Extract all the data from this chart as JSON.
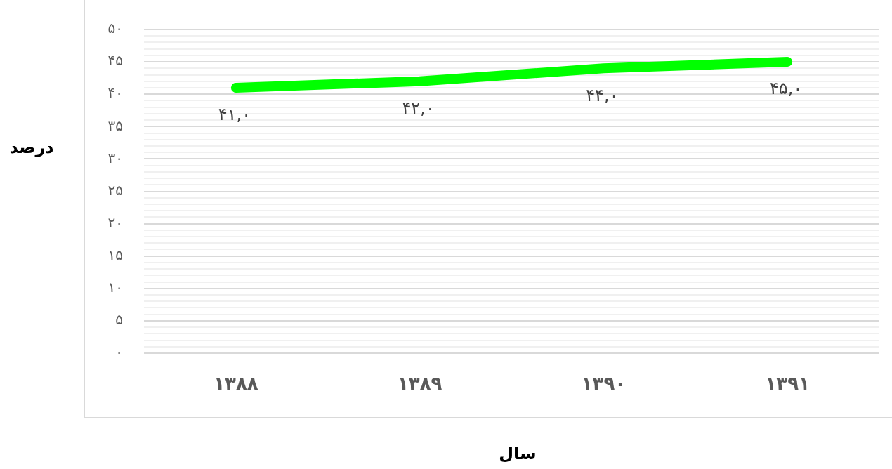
{
  "chart_data": {
    "type": "line",
    "xlabel": "سال",
    "ylabel": "درصد",
    "categories": [
      "۱۳۸۸",
      "۱۳۸۹",
      "۱۳۹۰",
      "۱۳۹۱"
    ],
    "series": [
      {
        "color": "#00ff00",
        "values": [
          41,
          42,
          44,
          45
        ],
        "value_labels": [
          "۴۱,۰",
          "۴۲,۰",
          "۴۴,۰",
          "۴۵,۰"
        ]
      }
    ],
    "ylim": [
      0,
      50
    ],
    "yticks": [
      {
        "value": 0,
        "label": "۰"
      },
      {
        "value": 1,
        "label": null
      },
      {
        "value": 2,
        "label": null
      },
      {
        "value": 3,
        "label": null
      },
      {
        "value": 4,
        "label": null
      },
      {
        "value": 5,
        "label": "۵"
      },
      {
        "value": 6,
        "label": null
      },
      {
        "value": 7,
        "label": null
      },
      {
        "value": 8,
        "label": null
      },
      {
        "value": 9,
        "label": null
      },
      {
        "value": 10,
        "label": "۱۰"
      },
      {
        "value": 11,
        "label": null
      },
      {
        "value": 12,
        "label": null
      },
      {
        "value": 13,
        "label": null
      },
      {
        "value": 14,
        "label": null
      },
      {
        "value": 15,
        "label": "۱۵"
      },
      {
        "value": 16,
        "label": null
      },
      {
        "value": 17,
        "label": null
      },
      {
        "value": 18,
        "label": null
      },
      {
        "value": 19,
        "label": null
      },
      {
        "value": 20,
        "label": "۲۰"
      },
      {
        "value": 21,
        "label": null
      },
      {
        "value": 22,
        "label": null
      },
      {
        "value": 23,
        "label": null
      },
      {
        "value": 24,
        "label": null
      },
      {
        "value": 25,
        "label": "۲۵"
      },
      {
        "value": 26,
        "label": null
      },
      {
        "value": 27,
        "label": null
      },
      {
        "value": 28,
        "label": null
      },
      {
        "value": 29,
        "label": null
      },
      {
        "value": 30,
        "label": "۳۰"
      },
      {
        "value": 31,
        "label": null
      },
      {
        "value": 32,
        "label": null
      },
      {
        "value": 33,
        "label": null
      },
      {
        "value": 34,
        "label": null
      },
      {
        "value": 35,
        "label": "۳۵"
      },
      {
        "value": 36,
        "label": null
      },
      {
        "value": 37,
        "label": null
      },
      {
        "value": 38,
        "label": null
      },
      {
        "value": 39,
        "label": null
      },
      {
        "value": 40,
        "label": "۴۰"
      },
      {
        "value": 41,
        "label": null
      },
      {
        "value": 42,
        "label": null
      },
      {
        "value": 43,
        "label": null
      },
      {
        "value": 44,
        "label": null
      },
      {
        "value": 45,
        "label": "۴۵"
      },
      {
        "value": 46,
        "label": null
      },
      {
        "value": 47,
        "label": null
      },
      {
        "value": 48,
        "label": null
      },
      {
        "value": 49,
        "label": null
      },
      {
        "value": 50,
        "label": "۵۰"
      }
    ],
    "grid": "y",
    "legend": false,
    "marker": "none",
    "line_style": "solid"
  }
}
